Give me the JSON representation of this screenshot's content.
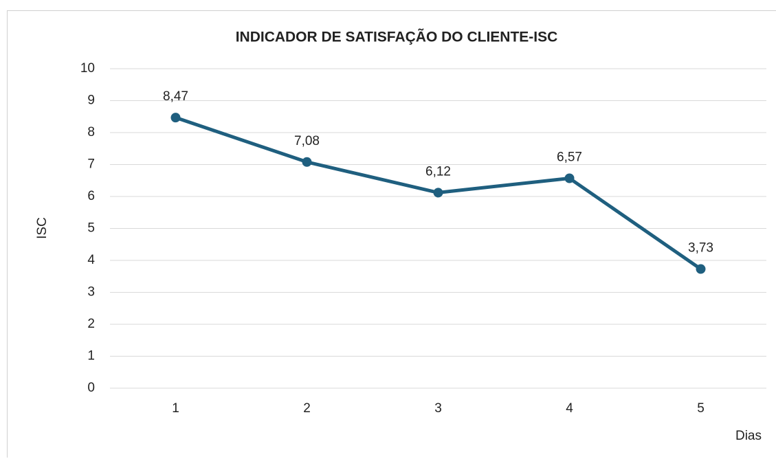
{
  "chart_data": {
    "type": "line",
    "title": "INDICADOR DE SATISFAÇÃO DO CLIENTE-ISC",
    "x_label": "Dias",
    "y_label": "ISC",
    "categories": [
      "1",
      "2",
      "3",
      "4",
      "5"
    ],
    "values": [
      8.47,
      7.08,
      6.12,
      6.57,
      3.73
    ],
    "value_labels": [
      "8,47",
      "7,08",
      "6,12",
      "6,57",
      "3,73"
    ],
    "color": "#1f5f7f",
    "ylim": [
      0,
      10
    ],
    "yticks": [
      0,
      1,
      2,
      3,
      4,
      5,
      6,
      7,
      8,
      9,
      10
    ],
    "grid": true
  }
}
